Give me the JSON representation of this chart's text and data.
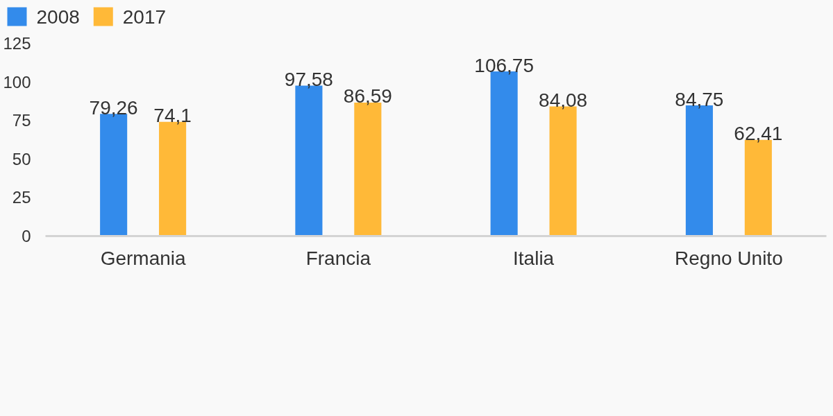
{
  "chart_data": {
    "type": "bar",
    "categories": [
      "Germania",
      "Francia",
      "Italia",
      "Regno Unito"
    ],
    "series": [
      {
        "name": "2008",
        "color": "#338beb",
        "values": [
          79.26,
          97.58,
          106.75,
          84.75
        ],
        "value_labels": [
          "79,26",
          "97,58",
          "106,75",
          "84,75"
        ]
      },
      {
        "name": "2017",
        "color": "#ffb938",
        "values": [
          74.1,
          86.59,
          84.08,
          62.41
        ],
        "value_labels": [
          "74,1",
          "86,59",
          "84,08",
          "62,41"
        ]
      }
    ],
    "ylim": [
      0,
      125
    ],
    "yticks": [
      0,
      25,
      50,
      75,
      100,
      125
    ],
    "grid": false,
    "legend": "top left"
  }
}
